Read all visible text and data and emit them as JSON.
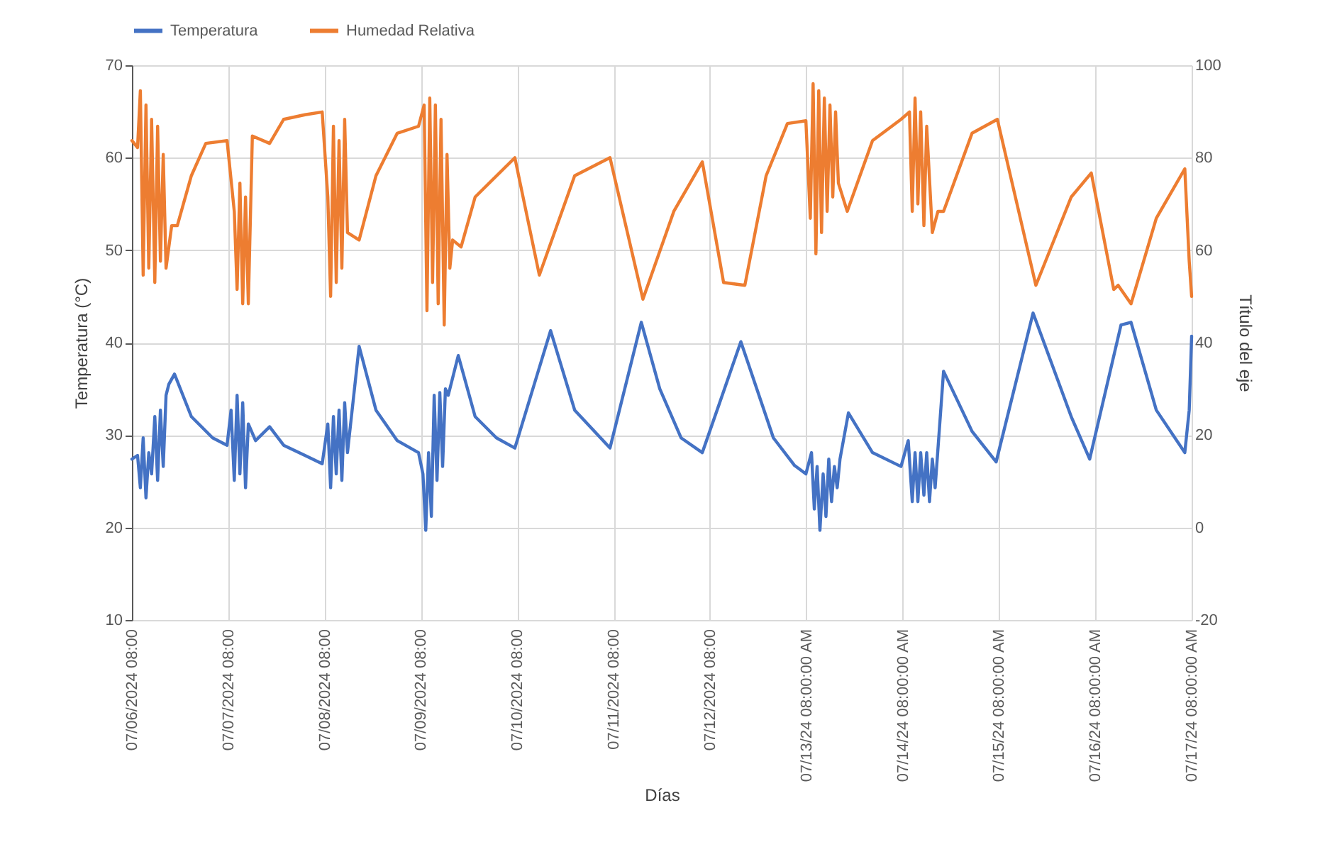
{
  "chart_data": {
    "type": "line",
    "xlabel": "Días",
    "ylabel": "Temperatura (°C)",
    "y2label": "Título del eje",
    "grid": true,
    "legend": "top",
    "line_style": "solid",
    "marker": "none",
    "xlim": [
      "2024-07-06T08:00",
      "2024-07-17T08:00"
    ],
    "xticks": [
      {
        "value": "2024-07-06T08:00",
        "label": "07/06/2024 08:00"
      },
      {
        "value": "2024-07-07T08:00",
        "label": "07/07/2024 08:00"
      },
      {
        "value": "2024-07-08T08:00",
        "label": "07/08/2024 08:00"
      },
      {
        "value": "2024-07-09T08:00",
        "label": "07/09/2024 08:00"
      },
      {
        "value": "2024-07-10T08:00",
        "label": "07/10/2024 08:00"
      },
      {
        "value": "2024-07-11T08:00",
        "label": "07/11/2024 08:00"
      },
      {
        "value": "2024-07-12T08:00",
        "label": "07/12/2024 08:00"
      },
      {
        "value": "2024-07-13T08:00",
        "label": "07/13/24 08:00:00 AM"
      },
      {
        "value": "2024-07-14T08:00",
        "label": "07/14/24 08:00:00 AM"
      },
      {
        "value": "2024-07-15T08:00",
        "label": "07/15/24 08:00:00 AM"
      },
      {
        "value": "2024-07-16T08:00",
        "label": "07/16/24 08:00:00 AM"
      },
      {
        "value": "2024-07-17T08:00",
        "label": "07/17/24 08:00:00 AM"
      }
    ],
    "ylim": [
      10,
      70
    ],
    "yticks": [
      10,
      20,
      30,
      40,
      50,
      60,
      70
    ],
    "y2lim": [
      -20,
      100
    ],
    "y2ticks": [
      -20,
      0,
      20,
      40,
      60,
      80,
      100
    ],
    "series": [
      {
        "name": "Temperatura",
        "color": "#4472c4",
        "x": [
          "2024-07-06T08:00",
          "2024-07-06T09:24",
          "2024-07-06T10:06",
          "2024-07-06T10:48",
          "2024-07-06T11:30",
          "2024-07-06T12:12",
          "2024-07-06T12:54",
          "2024-07-06T13:42",
          "2024-07-06T14:24",
          "2024-07-06T15:06",
          "2024-07-06T15:48",
          "2024-07-06T16:30",
          "2024-07-06T17:12",
          "2024-07-06T18:36",
          "2024-07-06T22:48",
          "2024-07-07T04:06",
          "2024-07-07T07:42",
          "2024-07-07T08:42",
          "2024-07-07T09:30",
          "2024-07-07T10:12",
          "2024-07-07T10:54",
          "2024-07-07T11:36",
          "2024-07-07T12:18",
          "2024-07-07T13:00",
          "2024-07-07T14:48",
          "2024-07-07T18:18",
          "2024-07-07T21:48",
          "2024-07-08T03:06",
          "2024-07-08T07:24",
          "2024-07-08T08:48",
          "2024-07-08T09:30",
          "2024-07-08T10:12",
          "2024-07-08T10:54",
          "2024-07-08T11:36",
          "2024-07-08T12:18",
          "2024-07-08T13:00",
          "2024-07-08T13:42",
          "2024-07-08T16:36",
          "2024-07-08T20:48",
          "2024-07-09T02:06",
          "2024-07-09T07:24",
          "2024-07-09T08:30",
          "2024-07-09T09:12",
          "2024-07-09T09:54",
          "2024-07-09T10:36",
          "2024-07-09T11:18",
          "2024-07-09T12:00",
          "2024-07-09T12:42",
          "2024-07-09T13:24",
          "2024-07-09T14:06",
          "2024-07-09T14:48",
          "2024-07-09T17:18",
          "2024-07-09T21:30",
          "2024-07-10T02:48",
          "2024-07-10T07:24",
          "2024-07-10T16:18",
          "2024-07-10T22:18",
          "2024-07-11T07:06",
          "2024-07-11T14:54",
          "2024-07-11T19:30",
          "2024-07-12T00:48",
          "2024-07-12T06:06",
          "2024-07-12T15:42",
          "2024-07-12T23:48",
          "2024-07-13T05:06",
          "2024-07-13T07:54",
          "2024-07-13T09:18",
          "2024-07-13T10:00",
          "2024-07-13T10:42",
          "2024-07-13T11:24",
          "2024-07-13T12:12",
          "2024-07-13T12:54",
          "2024-07-13T13:36",
          "2024-07-13T14:18",
          "2024-07-13T15:00",
          "2024-07-13T15:42",
          "2024-07-13T16:24",
          "2024-07-13T18:30",
          "2024-07-14T00:30",
          "2024-07-14T07:36",
          "2024-07-14T09:24",
          "2024-07-14T10:24",
          "2024-07-14T11:06",
          "2024-07-14T11:48",
          "2024-07-14T12:30",
          "2024-07-14T13:18",
          "2024-07-14T14:00",
          "2024-07-14T14:42",
          "2024-07-14T15:24",
          "2024-07-14T16:06",
          "2024-07-14T18:12",
          "2024-07-15T01:18",
          "2024-07-15T07:18",
          "2024-07-15T16:30",
          "2024-07-16T02:00",
          "2024-07-16T06:36",
          "2024-07-16T14:24",
          "2024-07-16T16:54",
          "2024-07-16T23:12",
          "2024-07-17T06:18",
          "2024-07-17T07:24",
          "2024-07-17T08:00"
        ],
        "values": [
          27.4,
          27.8,
          24.3,
          29.7,
          23.2,
          28.1,
          25.8,
          32,
          25.1,
          32.7,
          26.6,
          34.3,
          35.5,
          36.6,
          32,
          29.7,
          28.9,
          32.7,
          25.1,
          34.3,
          25.8,
          33.5,
          24.3,
          31.2,
          29.4,
          30.9,
          28.9,
          27.8,
          26.9,
          31.2,
          24.3,
          32,
          25.8,
          32.7,
          25.1,
          33.5,
          28.1,
          39.6,
          32.7,
          29.4,
          28.1,
          25.8,
          19.7,
          28.1,
          21.2,
          34.3,
          25.1,
          34.6,
          26.6,
          35,
          34.3,
          38.6,
          32,
          29.7,
          28.6,
          41.3,
          32.7,
          28.6,
          42.2,
          35,
          29.7,
          28.1,
          40.1,
          29.7,
          26.7,
          25.8,
          28.1,
          22,
          26.6,
          19.7,
          25.8,
          21.2,
          27.4,
          22.8,
          26.6,
          24.3,
          27.4,
          32.4,
          28.1,
          26.6,
          29.4,
          22.8,
          28.1,
          22.8,
          28.1,
          23.5,
          28.1,
          22.8,
          27.4,
          24.3,
          36.9,
          30.4,
          27.1,
          43.2,
          32,
          27.4,
          41.9,
          42.2,
          32.7,
          28.1,
          32.7,
          40.7
        ]
      },
      {
        "name": "Humedad Relativa",
        "color": "#ed7d31",
        "axis": "y2",
        "x": [
          "2024-07-06T08:00",
          "2024-07-06T09:24",
          "2024-07-06T10:06",
          "2024-07-06T10:48",
          "2024-07-06T11:30",
          "2024-07-06T12:12",
          "2024-07-06T12:54",
          "2024-07-06T13:42",
          "2024-07-06T14:24",
          "2024-07-06T15:06",
          "2024-07-06T15:48",
          "2024-07-06T16:30",
          "2024-07-06T17:54",
          "2024-07-06T19:18",
          "2024-07-06T22:48",
          "2024-07-07T02:24",
          "2024-07-07T07:42",
          "2024-07-07T09:30",
          "2024-07-07T10:12",
          "2024-07-07T10:54",
          "2024-07-07T11:36",
          "2024-07-07T12:18",
          "2024-07-07T13:00",
          "2024-07-07T14:00",
          "2024-07-07T18:18",
          "2024-07-07T21:48",
          "2024-07-08T03:06",
          "2024-07-08T07:24",
          "2024-07-08T08:48",
          "2024-07-08T09:30",
          "2024-07-08T10:12",
          "2024-07-08T10:54",
          "2024-07-08T11:36",
          "2024-07-08T12:18",
          "2024-07-08T13:00",
          "2024-07-08T13:42",
          "2024-07-08T16:36",
          "2024-07-08T20:48",
          "2024-07-09T02:06",
          "2024-07-09T07:24",
          "2024-07-09T08:48",
          "2024-07-09T09:30",
          "2024-07-09T10:12",
          "2024-07-09T10:54",
          "2024-07-09T11:36",
          "2024-07-09T12:18",
          "2024-07-09T13:00",
          "2024-07-09T13:48",
          "2024-07-09T14:30",
          "2024-07-09T15:12",
          "2024-07-09T15:54",
          "2024-07-09T18:00",
          "2024-07-09T21:30",
          "2024-07-10T04:36",
          "2024-07-10T07:24",
          "2024-07-10T13:30",
          "2024-07-10T22:18",
          "2024-07-11T07:06",
          "2024-07-11T15:18",
          "2024-07-11T23:00",
          "2024-07-12T06:06",
          "2024-07-12T11:24",
          "2024-07-12T16:42",
          "2024-07-12T22:00",
          "2024-07-13T03:18",
          "2024-07-13T07:54",
          "2024-07-13T09:00",
          "2024-07-13T09:42",
          "2024-07-13T10:24",
          "2024-07-13T11:06",
          "2024-07-13T11:48",
          "2024-07-13T12:30",
          "2024-07-13T13:12",
          "2024-07-13T13:54",
          "2024-07-13T14:36",
          "2024-07-13T15:18",
          "2024-07-13T16:00",
          "2024-07-13T18:12",
          "2024-07-14T00:30",
          "2024-07-14T07:36",
          "2024-07-14T09:42",
          "2024-07-14T10:24",
          "2024-07-14T11:06",
          "2024-07-14T11:48",
          "2024-07-14T12:30",
          "2024-07-14T13:18",
          "2024-07-14T14:00",
          "2024-07-14T15:24",
          "2024-07-14T16:48",
          "2024-07-14T18:12",
          "2024-07-15T01:18",
          "2024-07-15T07:36",
          "2024-07-15T17:12",
          "2024-07-16T02:00",
          "2024-07-16T07:00",
          "2024-07-16T12:36",
          "2024-07-16T13:42",
          "2024-07-16T16:54",
          "2024-07-16T23:12",
          "2024-07-17T06:18",
          "2024-07-17T07:24",
          "2024-07-17T08:00"
        ],
        "values": [
          83.7,
          82.2,
          94.5,
          54.6,
          91.4,
          56.1,
          88.3,
          53,
          86.8,
          57.6,
          80.7,
          56.1,
          65.3,
          65.3,
          76.1,
          83.1,
          83.7,
          68.4,
          51.5,
          74.5,
          48.4,
          71.5,
          48.4,
          84.7,
          83.1,
          88.3,
          89.3,
          89.9,
          71.5,
          50,
          86.8,
          53,
          83.7,
          56.1,
          88.3,
          63.8,
          62.2,
          76.1,
          85.3,
          86.8,
          91.4,
          46.9,
          92.9,
          53,
          91.4,
          48.4,
          88.3,
          43.8,
          80.7,
          56.1,
          62.2,
          60.7,
          71.5,
          77.6,
          80,
          54.6,
          76.1,
          80,
          49.4,
          68.4,
          79.1,
          53,
          52.4,
          76.1,
          87.4,
          88,
          66.9,
          96,
          59.2,
          94.5,
          63.8,
          92.9,
          68.4,
          91.4,
          71.5,
          89.9,
          74.5,
          68.4,
          83.7,
          88.3,
          89.9,
          68.4,
          92.9,
          70,
          89.9,
          65.3,
          86.8,
          63.8,
          68.4,
          68.4,
          85.3,
          88.3,
          52.4,
          71.5,
          76.7,
          51.5,
          52.4,
          48.4,
          66.9,
          77.6,
          57.6,
          50
        ]
      }
    ]
  }
}
